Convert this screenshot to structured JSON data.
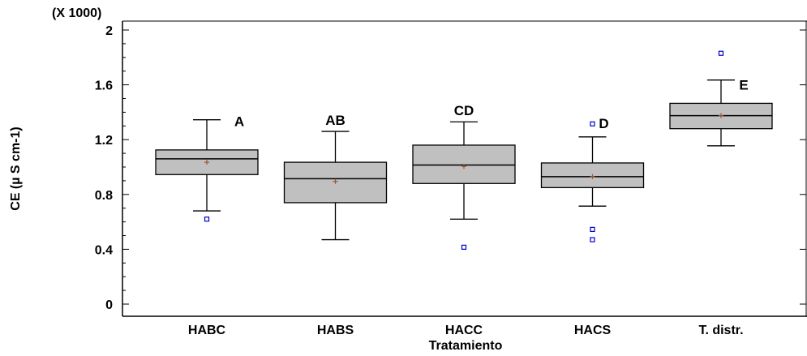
{
  "chart_data": {
    "type": "boxplot",
    "xlabel": "Tratamiento",
    "ylabel": "CE (µ S cm-1)",
    "y_multiplier_label": "(X 1000)",
    "ylim": [
      0,
      2.05
    ],
    "y_ticks": [
      0,
      0.4,
      0.8,
      1.2,
      1.6,
      2
    ],
    "y_tick_labels": [
      "0",
      "0.4",
      "0.8",
      "1.2",
      "1.6",
      "2"
    ],
    "grid": false,
    "categories": [
      "HABC",
      "HABS",
      "HACC",
      "HACS",
      "T. distr."
    ],
    "boxes": [
      {
        "label": "HABC",
        "whisker_low": 0.68,
        "q1": 0.945,
        "median": 1.06,
        "q3": 1.125,
        "whisker_high": 1.345,
        "mean": 1.035,
        "outliers": [
          0.62
        ],
        "group": "A"
      },
      {
        "label": "HABS",
        "whisker_low": 0.47,
        "q1": 0.74,
        "median": 0.915,
        "q3": 1.035,
        "whisker_high": 1.26,
        "mean": 0.895,
        "outliers": [],
        "group": "AB"
      },
      {
        "label": "HACC",
        "whisker_low": 0.62,
        "q1": 0.88,
        "median": 1.015,
        "q3": 1.16,
        "whisker_high": 1.33,
        "mean": 1.005,
        "outliers": [
          0.415
        ],
        "group": "CD"
      },
      {
        "label": "HACS",
        "whisker_low": 0.715,
        "q1": 0.85,
        "median": 0.93,
        "q3": 1.03,
        "whisker_high": 1.22,
        "mean": 0.93,
        "outliers": [
          1.315,
          0.545,
          0.47
        ],
        "group": "D"
      },
      {
        "label": "T. distr.",
        "whisker_low": 1.155,
        "q1": 1.28,
        "median": 1.375,
        "q3": 1.465,
        "whisker_high": 1.635,
        "mean": 1.375,
        "outliers": [
          1.83
        ],
        "group": "E"
      }
    ],
    "colors": {
      "box_fill": "#c0c0c0",
      "mean_marker": "#a0522d",
      "outlier": "#0000cc",
      "axis": "#000000"
    }
  }
}
